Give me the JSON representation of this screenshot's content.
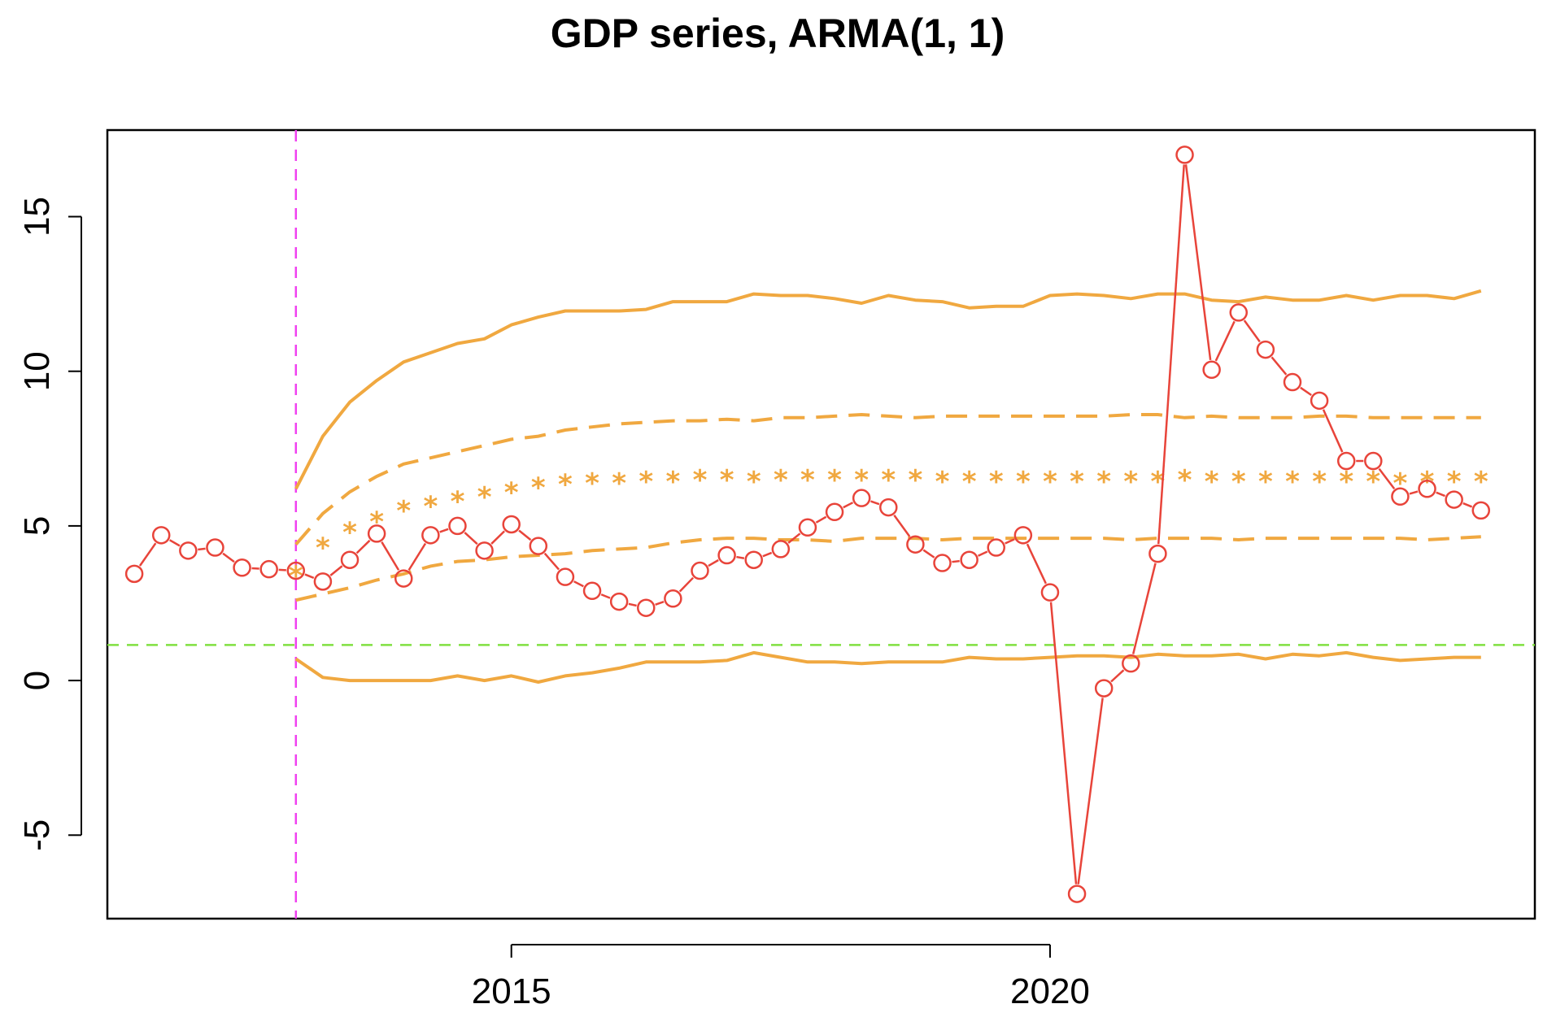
{
  "chart_data": {
    "type": "line",
    "title": "GDP series, ARMA(1, 1)",
    "xlabel": "",
    "ylabel": "",
    "xlim": [
      2011.25,
      2024.5
    ],
    "ylim": [
      -7.7,
      17.8
    ],
    "x_ticks": [
      {
        "value": 2015,
        "label": "2015"
      },
      {
        "value": 2020,
        "label": "2020"
      }
    ],
    "y_ticks": [
      {
        "value": -5,
        "label": "-5"
      },
      {
        "value": 0,
        "label": "0"
      },
      {
        "value": 5,
        "label": "5"
      },
      {
        "value": 10,
        "label": "10"
      },
      {
        "value": 15,
        "label": "15"
      }
    ],
    "vline": {
      "x": 2013.0,
      "color": "#f040f0"
    },
    "hline": {
      "y": 1.15,
      "color": "#80e040"
    },
    "colors": {
      "observed": "#e8443a",
      "forecast": "#f0a840"
    },
    "series": [
      {
        "style": "observed",
        "x": [
          2011.5,
          2011.75,
          2012,
          2012.25,
          2012.5,
          2012.75,
          2013,
          2013.25,
          2013.5,
          2013.75,
          2014,
          2014.25,
          2014.5,
          2014.75,
          2015,
          2015.25,
          2015.5,
          2015.75,
          2016,
          2016.25,
          2016.5,
          2016.75,
          2017,
          2017.25,
          2017.5,
          2017.75,
          2018,
          2018.25,
          2018.5,
          2018.75,
          2019,
          2019.25,
          2019.5,
          2019.75,
          2020,
          2020.25,
          2020.5,
          2020.75,
          2021,
          2021.25,
          2021.5,
          2021.75,
          2022,
          2022.25,
          2022.5,
          2022.75,
          2023,
          2023.25,
          2023.5,
          2023.75,
          2024
        ],
        "values": [
          3.45,
          4.7,
          4.2,
          4.3,
          3.65,
          3.6,
          3.55,
          3.2,
          3.9,
          4.75,
          3.3,
          4.7,
          5.0,
          4.2,
          5.05,
          4.35,
          3.35,
          2.9,
          2.55,
          2.35,
          2.65,
          3.55,
          4.05,
          3.9,
          4.25,
          4.95,
          5.45,
          5.9,
          5.6,
          4.4,
          3.8,
          3.9,
          4.3,
          4.7,
          2.85,
          -6.9,
          -0.25,
          0.55,
          4.1,
          17.0,
          10.05,
          11.9,
          10.7,
          9.65,
          9.05,
          7.1,
          7.1,
          5.95,
          6.2,
          5.85,
          5.5
        ]
      },
      {
        "style": "forecast-upper-outer",
        "x": [
          2013,
          2013.25,
          2013.5,
          2013.75,
          2014,
          2014.25,
          2014.5,
          2014.75,
          2015,
          2015.25,
          2015.5,
          2015.75,
          2016,
          2016.25,
          2016.5,
          2016.75,
          2017,
          2017.25,
          2017.5,
          2017.75,
          2018,
          2018.25,
          2018.5,
          2018.75,
          2019,
          2019.25,
          2019.5,
          2019.75,
          2020,
          2020.25,
          2020.5,
          2020.75,
          2021,
          2021.25,
          2021.5,
          2021.75,
          2022,
          2022.25,
          2022.5,
          2022.75,
          2023,
          2023.25,
          2023.5,
          2023.75,
          2024
        ],
        "values": [
          6.2,
          7.9,
          9.0,
          9.7,
          10.3,
          10.6,
          10.9,
          11.05,
          11.5,
          11.75,
          11.95,
          11.95,
          11.95,
          12.0,
          12.25,
          12.25,
          12.25,
          12.5,
          12.45,
          12.45,
          12.35,
          12.2,
          12.45,
          12.3,
          12.25,
          12.05,
          12.1,
          12.1,
          12.45,
          12.5,
          12.45,
          12.35,
          12.5,
          12.5,
          12.3,
          12.25,
          12.4,
          12.3,
          12.3,
          12.45,
          12.3,
          12.45,
          12.45,
          12.35,
          12.6
        ]
      },
      {
        "style": "forecast-upper-inner",
        "x": [
          2013,
          2013.25,
          2013.5,
          2013.75,
          2014,
          2014.25,
          2014.5,
          2014.75,
          2015,
          2015.25,
          2015.5,
          2015.75,
          2016,
          2016.25,
          2016.5,
          2016.75,
          2017,
          2017.25,
          2017.5,
          2017.75,
          2018,
          2018.25,
          2018.5,
          2018.75,
          2019,
          2019.25,
          2019.5,
          2019.75,
          2020,
          2020.25,
          2020.5,
          2020.75,
          2021,
          2021.25,
          2021.5,
          2021.75,
          2022,
          2022.25,
          2022.5,
          2022.75,
          2023,
          2023.25,
          2023.5,
          2023.75,
          2024
        ],
        "values": [
          4.4,
          5.4,
          6.1,
          6.6,
          7.0,
          7.2,
          7.4,
          7.6,
          7.8,
          7.9,
          8.1,
          8.2,
          8.3,
          8.35,
          8.4,
          8.4,
          8.45,
          8.4,
          8.5,
          8.5,
          8.55,
          8.6,
          8.55,
          8.5,
          8.55,
          8.55,
          8.55,
          8.55,
          8.55,
          8.55,
          8.55,
          8.6,
          8.6,
          8.5,
          8.55,
          8.5,
          8.5,
          8.5,
          8.55,
          8.55,
          8.5,
          8.5,
          8.5,
          8.5,
          8.5
        ]
      },
      {
        "style": "forecast-point",
        "x": [
          2013,
          2013.25,
          2013.5,
          2013.75,
          2014,
          2014.25,
          2014.5,
          2014.75,
          2015,
          2015.25,
          2015.5,
          2015.75,
          2016,
          2016.25,
          2016.5,
          2016.75,
          2017,
          2017.25,
          2017.5,
          2017.75,
          2018,
          2018.25,
          2018.5,
          2018.75,
          2019,
          2019.25,
          2019.5,
          2019.75,
          2020,
          2020.25,
          2020.5,
          2020.75,
          2021,
          2021.25,
          2021.5,
          2021.75,
          2022,
          2022.25,
          2022.5,
          2022.75,
          2023,
          2023.25,
          2023.5,
          2023.75,
          2024
        ],
        "values": [
          3.5,
          4.4,
          4.9,
          5.25,
          5.6,
          5.75,
          5.9,
          6.05,
          6.2,
          6.35,
          6.45,
          6.5,
          6.5,
          6.55,
          6.55,
          6.6,
          6.6,
          6.55,
          6.6,
          6.6,
          6.6,
          6.6,
          6.6,
          6.6,
          6.55,
          6.55,
          6.55,
          6.55,
          6.55,
          6.55,
          6.55,
          6.55,
          6.55,
          6.6,
          6.55,
          6.55,
          6.55,
          6.55,
          6.55,
          6.55,
          6.55,
          6.5,
          6.55,
          6.55,
          6.55
        ]
      },
      {
        "style": "forecast-lower-inner",
        "x": [
          2013,
          2013.25,
          2013.5,
          2013.75,
          2014,
          2014.25,
          2014.5,
          2014.75,
          2015,
          2015.25,
          2015.5,
          2015.75,
          2016,
          2016.25,
          2016.5,
          2016.75,
          2017,
          2017.25,
          2017.5,
          2017.75,
          2018,
          2018.25,
          2018.5,
          2018.75,
          2019,
          2019.25,
          2019.5,
          2019.75,
          2020,
          2020.25,
          2020.5,
          2020.75,
          2021,
          2021.25,
          2021.5,
          2021.75,
          2022,
          2022.25,
          2022.5,
          2022.75,
          2023,
          2023.25,
          2023.5,
          2023.75,
          2024
        ],
        "values": [
          2.6,
          2.8,
          3.0,
          3.25,
          3.45,
          3.7,
          3.85,
          3.9,
          4.0,
          4.05,
          4.1,
          4.2,
          4.25,
          4.3,
          4.45,
          4.55,
          4.6,
          4.6,
          4.55,
          4.55,
          4.5,
          4.6,
          4.6,
          4.6,
          4.55,
          4.6,
          4.6,
          4.6,
          4.6,
          4.6,
          4.6,
          4.55,
          4.6,
          4.6,
          4.6,
          4.55,
          4.6,
          4.6,
          4.6,
          4.6,
          4.6,
          4.6,
          4.55,
          4.6,
          4.65
        ]
      },
      {
        "style": "forecast-lower-outer",
        "x": [
          2013,
          2013.25,
          2013.5,
          2013.75,
          2014,
          2014.25,
          2014.5,
          2014.75,
          2015,
          2015.25,
          2015.5,
          2015.75,
          2016,
          2016.25,
          2016.5,
          2016.75,
          2017,
          2017.25,
          2017.5,
          2017.75,
          2018,
          2018.25,
          2018.5,
          2018.75,
          2019,
          2019.25,
          2019.5,
          2019.75,
          2020,
          2020.25,
          2020.5,
          2020.75,
          2021,
          2021.25,
          2021.5,
          2021.75,
          2022,
          2022.25,
          2022.5,
          2022.75,
          2023,
          2023.25,
          2023.5,
          2023.75,
          2024
        ],
        "values": [
          0.7,
          0.1,
          0.0,
          0.0,
          0.0,
          0.0,
          0.15,
          0.0,
          0.15,
          -0.05,
          0.15,
          0.25,
          0.4,
          0.6,
          0.6,
          0.6,
          0.65,
          0.9,
          0.75,
          0.6,
          0.6,
          0.55,
          0.6,
          0.6,
          0.6,
          0.75,
          0.7,
          0.7,
          0.75,
          0.8,
          0.8,
          0.75,
          0.85,
          0.8,
          0.8,
          0.85,
          0.7,
          0.85,
          0.8,
          0.9,
          0.75,
          0.65,
          0.7,
          0.75,
          0.75
        ]
      }
    ]
  }
}
